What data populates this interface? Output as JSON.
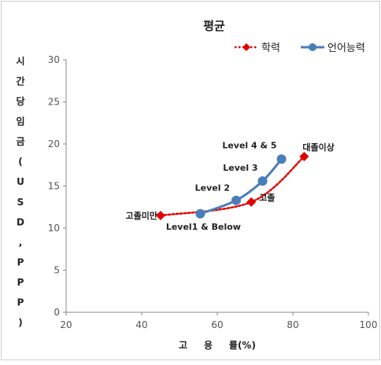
{
  "chart_data": {
    "type": "line",
    "title": "평균",
    "xlabel": "고 용 률(%)",
    "ylabel": "시간당임금(USD, PPP)",
    "xlim": [
      20,
      100
    ],
    "ylim": [
      0,
      30
    ],
    "x_ticks": [
      20,
      40,
      60,
      80,
      100
    ],
    "y_ticks": [
      0,
      5,
      10,
      15,
      20,
      25,
      30
    ],
    "grid": false,
    "legend_position": "top-right",
    "series": [
      {
        "name": "학력",
        "color": "#e00000",
        "style": "dotted",
        "marker": "diamond",
        "points": [
          {
            "x": 45,
            "y": 11.5,
            "label": "고졸미만"
          },
          {
            "x": 69,
            "y": 13.1,
            "label": "고졸"
          },
          {
            "x": 83,
            "y": 18.5,
            "label": "대졸이상"
          }
        ]
      },
      {
        "name": "언어능력",
        "color": "#4a7ebb",
        "style": "solid",
        "marker": "circle",
        "points": [
          {
            "x": 55.5,
            "y": 11.7,
            "label": "Level1 & Below"
          },
          {
            "x": 65,
            "y": 13.3,
            "label": "Level 2"
          },
          {
            "x": 72,
            "y": 15.6,
            "label": "Level 3"
          },
          {
            "x": 77,
            "y": 18.2,
            "label": "Level 4 & 5"
          }
        ]
      }
    ]
  }
}
